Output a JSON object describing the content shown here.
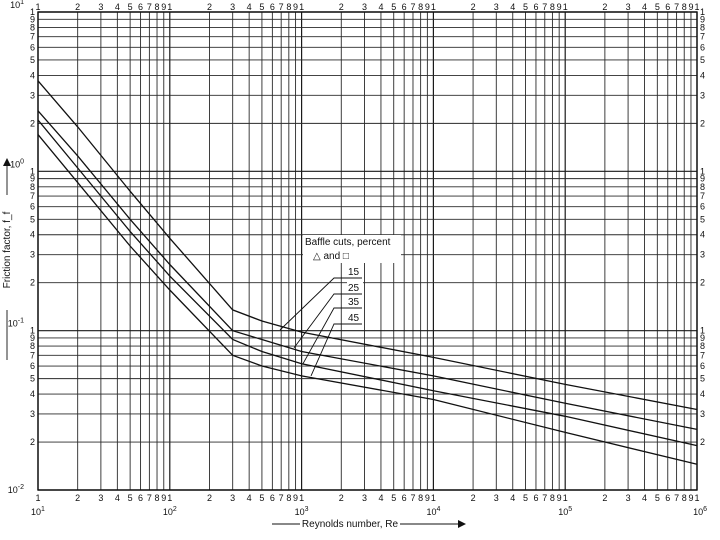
{
  "chart_data": {
    "type": "line",
    "title": "",
    "xlabel": "Reynolds number, Re",
    "ylabel": "Friction factor, f_f",
    "xscale": "log",
    "yscale": "log",
    "xlim": [
      10,
      1000000
    ],
    "ylim": [
      0.01,
      10
    ],
    "grid": true,
    "x_decade_labels": [
      "10^1",
      "10^2",
      "10^3",
      "10^4",
      "10^5",
      "10^6"
    ],
    "y_decade_labels": [
      "10^-2",
      "10^-1",
      "10^0",
      "10^1"
    ],
    "minor_tick_labels": [
      "2",
      "3",
      "4",
      "5",
      "6",
      "7",
      "8",
      "9",
      "1"
    ],
    "legend": {
      "title": "Baffle cuts, percent",
      "subtitle": "△ and □",
      "entries": [
        "15",
        "25",
        "35",
        "45"
      ]
    },
    "series": [
      {
        "name": "15",
        "x": [
          10,
          20,
          50,
          100,
          300,
          500,
          1000,
          10000,
          100000,
          1000000
        ],
        "y": [
          3.7,
          1.9,
          0.75,
          0.38,
          0.135,
          0.115,
          0.098,
          0.068,
          0.046,
          0.032
        ]
      },
      {
        "name": "25",
        "x": [
          10,
          20,
          50,
          100,
          300,
          500,
          1000,
          10000,
          100000,
          1000000
        ],
        "y": [
          2.4,
          1.25,
          0.5,
          0.26,
          0.1,
          0.088,
          0.074,
          0.052,
          0.035,
          0.024
        ]
      },
      {
        "name": "35",
        "x": [
          10,
          20,
          50,
          100,
          300,
          500,
          1000,
          10000,
          100000,
          1000000
        ],
        "y": [
          2.1,
          1.05,
          0.42,
          0.22,
          0.088,
          0.074,
          0.062,
          0.042,
          0.029,
          0.019
        ]
      },
      {
        "name": "45",
        "x": [
          10,
          20,
          50,
          100,
          300,
          500,
          1000,
          10000,
          100000,
          1000000
        ],
        "y": [
          1.7,
          0.85,
          0.34,
          0.18,
          0.07,
          0.06,
          0.052,
          0.037,
          0.023,
          0.0145
        ]
      }
    ]
  }
}
